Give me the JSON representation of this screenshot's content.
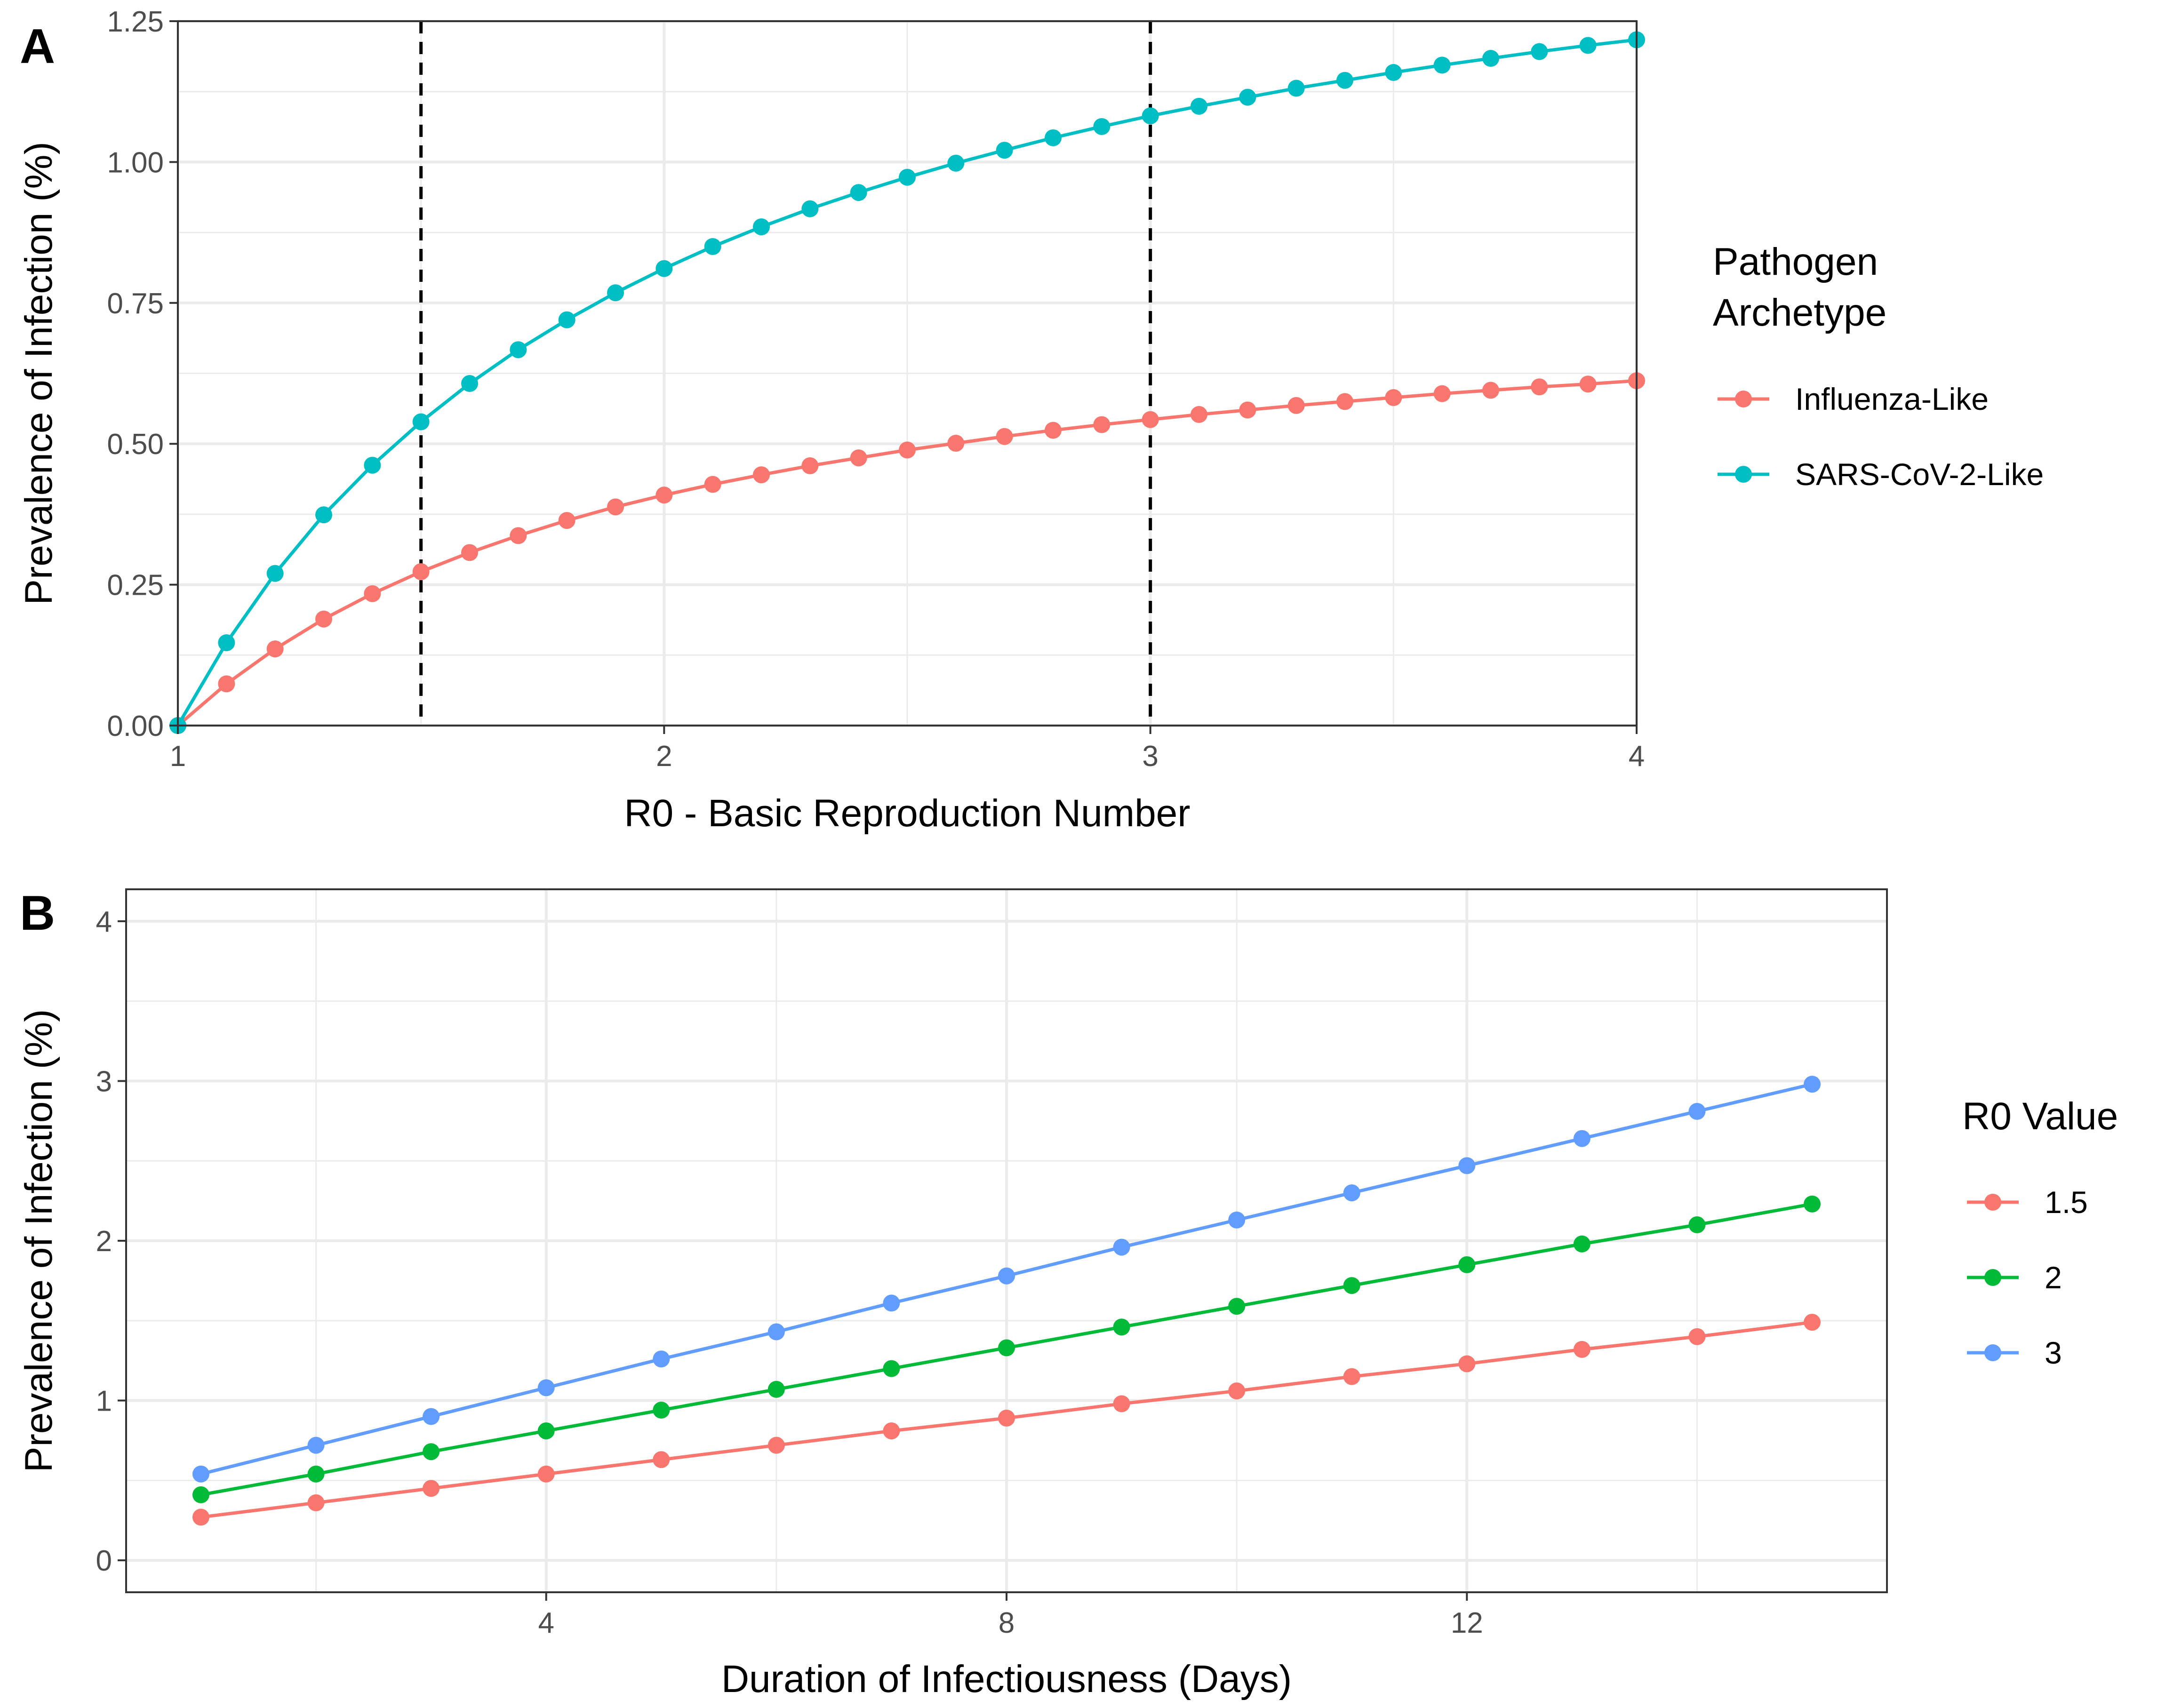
{
  "chart_data": [
    {
      "type": "line",
      "panel": "A",
      "xlabel": "R0 - Basic Reproduction Number",
      "ylabel": "Prevalence of Infection (%)",
      "xlim": [
        1,
        4
      ],
      "ylim": [
        0,
        1.25
      ],
      "xticks": [
        1,
        2,
        3,
        4
      ],
      "xtick_labels": [
        "1",
        "2",
        "3",
        "4"
      ],
      "yticks": [
        0,
        0.25,
        0.5,
        0.75,
        1.0,
        1.25
      ],
      "ytick_labels": [
        "0.00",
        "0.25",
        "0.50",
        "0.75",
        "1.00",
        "1.25"
      ],
      "vlines": [
        1.5,
        3
      ],
      "grid": true,
      "legend": {
        "title_lines": [
          "Pathogen",
          "Archetype"
        ],
        "placement": "right"
      },
      "x": [
        1.0,
        1.1,
        1.2,
        1.3,
        1.4,
        1.5,
        1.6,
        1.7,
        1.8,
        1.9,
        2.0,
        2.1,
        2.2,
        2.3,
        2.4,
        2.5,
        2.6,
        2.7,
        2.8,
        2.9,
        3.0,
        3.1,
        3.2,
        3.3,
        3.4,
        3.5,
        3.6,
        3.7,
        3.8,
        3.9,
        4.0
      ],
      "series": [
        {
          "name": "Influenza-Like",
          "color": "#F8766D",
          "values": [
            0,
            0.074,
            0.136,
            0.189,
            0.234,
            0.273,
            0.307,
            0.337,
            0.364,
            0.388,
            0.409,
            0.428,
            0.445,
            0.461,
            0.475,
            0.489,
            0.501,
            0.513,
            0.524,
            0.534,
            0.543,
            0.552,
            0.56,
            0.568,
            0.575,
            0.582,
            0.589,
            0.595,
            0.601,
            0.606,
            0.612
          ]
        },
        {
          "name": "SARS-CoV-2-Like",
          "color": "#00BFC4",
          "values": [
            0,
            0.147,
            0.27,
            0.374,
            0.462,
            0.539,
            0.607,
            0.667,
            0.72,
            0.768,
            0.811,
            0.85,
            0.885,
            0.917,
            0.946,
            0.973,
            0.998,
            1.021,
            1.043,
            1.063,
            1.082,
            1.099,
            1.115,
            1.131,
            1.145,
            1.159,
            1.172,
            1.184,
            1.196,
            1.207,
            1.217
          ]
        }
      ]
    },
    {
      "type": "line",
      "panel": "B",
      "xlabel": "Duration of Infectiousness (Days)",
      "ylabel": "Prevalence of Infection (%)",
      "xlim": [
        0.35,
        15.65
      ],
      "ylim": [
        -0.2,
        4.2
      ],
      "xticks": [
        4,
        8,
        12
      ],
      "xtick_labels": [
        "4",
        "8",
        "12"
      ],
      "yticks": [
        0,
        1,
        2,
        3,
        4
      ],
      "ytick_labels": [
        "0",
        "1",
        "2",
        "3",
        "4"
      ],
      "grid": true,
      "legend": {
        "title_lines": [
          "R0 Value"
        ],
        "placement": "right"
      },
      "x": [
        1,
        2,
        3,
        4,
        5,
        6,
        7,
        8,
        9,
        10,
        11,
        12,
        13,
        14,
        15
      ],
      "series": [
        {
          "name": "1.5",
          "color": "#F8766D",
          "values": [
            0.27,
            0.36,
            0.45,
            0.54,
            0.63,
            0.72,
            0.81,
            0.89,
            0.98,
            1.06,
            1.15,
            1.23,
            1.32,
            1.4,
            1.49
          ]
        },
        {
          "name": "2",
          "color": "#00BA38",
          "values": [
            0.41,
            0.54,
            0.68,
            0.81,
            0.94,
            1.07,
            1.2,
            1.33,
            1.46,
            1.59,
            1.72,
            1.85,
            1.98,
            2.1,
            2.23
          ]
        },
        {
          "name": "3",
          "color": "#619CFF",
          "values": [
            0.54,
            0.72,
            0.9,
            1.08,
            1.26,
            1.43,
            1.61,
            1.78,
            1.96,
            2.13,
            2.3,
            2.47,
            2.64,
            2.81,
            2.98
          ]
        }
      ]
    }
  ]
}
